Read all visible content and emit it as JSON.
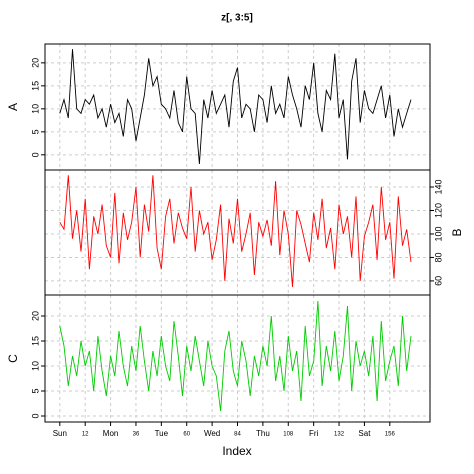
{
  "chart_data": {
    "type": "line",
    "title": "z[, 3:5]",
    "xlabel": "Index",
    "grid": true,
    "xlim": [
      -7,
      175
    ],
    "xticks": [
      {
        "value": 0,
        "label": "Sun"
      },
      12,
      {
        "value": 24,
        "label": "Mon"
      },
      36,
      {
        "value": 48,
        "label": "Tue"
      },
      60,
      {
        "value": 72,
        "label": "Wed"
      },
      84,
      {
        "value": 96,
        "label": "Thu"
      },
      108,
      {
        "value": 120,
        "label": "Fri"
      },
      132,
      {
        "value": 144,
        "label": "Sat"
      },
      156
    ],
    "x": [
      0,
      2,
      4,
      6,
      8,
      10,
      12,
      14,
      16,
      18,
      20,
      22,
      24,
      26,
      28,
      30,
      32,
      34,
      36,
      38,
      40,
      42,
      44,
      46,
      48,
      50,
      52,
      54,
      56,
      58,
      60,
      62,
      64,
      66,
      68,
      70,
      72,
      74,
      76,
      78,
      80,
      82,
      84,
      86,
      88,
      90,
      92,
      94,
      96,
      98,
      100,
      102,
      104,
      106,
      108,
      110,
      112,
      114,
      116,
      118,
      120,
      122,
      124,
      126,
      128,
      130,
      132,
      134,
      136,
      138,
      140,
      142,
      144,
      146,
      148,
      150,
      152,
      154,
      156,
      158,
      160,
      162,
      164,
      166
    ],
    "series": [
      {
        "name": "A",
        "color": "#000000",
        "axis_side": "left",
        "ylim": [
          -3.3,
          24.1
        ],
        "yticks": [
          0,
          5,
          10,
          15,
          20
        ],
        "values": [
          9,
          12,
          8,
          23,
          10,
          9,
          12,
          11,
          13,
          8,
          10,
          6,
          11,
          7,
          9,
          4,
          12,
          10,
          3,
          8,
          13,
          21,
          15,
          17,
          11,
          10,
          8,
          14,
          7,
          5,
          17,
          10,
          9,
          -2,
          12,
          8,
          14,
          9,
          11,
          13,
          6,
          16,
          19,
          8,
          11,
          10,
          5,
          13,
          12,
          7,
          15,
          9,
          11,
          8,
          17,
          13,
          10,
          6,
          15,
          12,
          20,
          9,
          5,
          14,
          12,
          22,
          8,
          12,
          -1,
          16,
          21,
          7,
          14,
          10,
          9,
          12,
          15,
          8,
          13,
          4,
          10,
          6,
          9,
          12
        ]
      },
      {
        "name": "B",
        "color": "#ff0000",
        "axis_side": "right",
        "ylim": [
          48,
          154.5
        ],
        "yticks": [
          60,
          80,
          100,
          120,
          140
        ],
        "values": [
          110,
          104,
          150,
          96,
          120,
          85,
          130,
          70,
          115,
          100,
          125,
          90,
          80,
          135,
          75,
          118,
          95,
          110,
          140,
          80,
          125,
          102,
          150,
          88,
          70,
          115,
          130,
          92,
          118,
          105,
          96,
          140,
          85,
          120,
          100,
          110,
          78,
          95,
          125,
          60,
          113,
          92,
          130,
          85,
          100,
          118,
          65,
          110,
          98,
          112,
          90,
          145,
          82,
          120,
          100,
          55,
          120,
          108,
          92,
          76,
          118,
          95,
          130,
          88,
          105,
          70,
          125,
          100,
          115,
          80,
          132,
          60,
          98,
          110,
          125,
          78,
          140,
          95,
          110,
          62,
          132,
          90,
          104,
          76
        ]
      },
      {
        "name": "C",
        "color": "#00cc00",
        "axis_side": "left",
        "ylim": [
          -1.2,
          24.2
        ],
        "yticks": [
          0,
          5,
          10,
          15,
          20
        ],
        "values": [
          18,
          14,
          6,
          12,
          8,
          15,
          10,
          13,
          5,
          16,
          9,
          4,
          12,
          8,
          17,
          10,
          6,
          14,
          9,
          18,
          11,
          5,
          13,
          8,
          16,
          10,
          7,
          19,
          12,
          4,
          14,
          9,
          16,
          11,
          6,
          15,
          10,
          8,
          1,
          13,
          17,
          9,
          6,
          15,
          11,
          4,
          12,
          8,
          14,
          10,
          20,
          7,
          12,
          5,
          16,
          9,
          13,
          3,
          18,
          8,
          11,
          23,
          6,
          14,
          9,
          17,
          7,
          12,
          22,
          5,
          15,
          10,
          13,
          8,
          16,
          3,
          19,
          7,
          11,
          14,
          6,
          20,
          9,
          16
        ]
      }
    ]
  }
}
